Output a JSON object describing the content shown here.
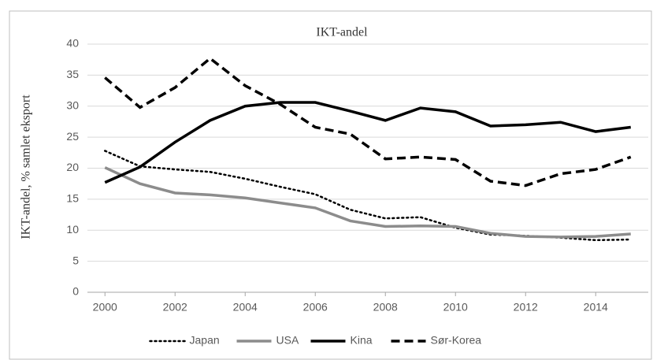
{
  "chart_data": {
    "type": "line",
    "title": "IKT-andel",
    "y_label": "IKT-andel,  % samlet eksport",
    "xlim": [
      1999.5,
      2015.5
    ],
    "xticks": [
      2000,
      2002,
      2004,
      2006,
      2008,
      2010,
      2012,
      2014
    ],
    "ylim": [
      0,
      40
    ],
    "yticks": [
      0,
      5,
      10,
      15,
      20,
      25,
      30,
      35,
      40
    ],
    "grid": true,
    "legend": "bottom",
    "x": [
      2000,
      2001,
      2002,
      2003,
      2004,
      2005,
      2006,
      2007,
      2008,
      2009,
      2010,
      2011,
      2012,
      2013,
      2014,
      2015
    ],
    "series": [
      {
        "name": "Japan",
        "color": "#000000",
        "dash": "dotted",
        "values": [
          22.8,
          20.3,
          19.8,
          19.4,
          18.3,
          17.0,
          15.8,
          13.3,
          11.9,
          12.1,
          10.4,
          9.3,
          9.1,
          8.8,
          8.4,
          8.5
        ]
      },
      {
        "name": "USA",
        "color": "#8c8c8c",
        "dash": "solid",
        "values": [
          20.1,
          17.5,
          16.0,
          15.7,
          15.2,
          14.4,
          13.6,
          11.5,
          10.6,
          10.7,
          10.6,
          9.5,
          9.0,
          8.9,
          9.0,
          9.4
        ]
      },
      {
        "name": "Kina",
        "color": "#000000",
        "dash": "solid",
        "values": [
          17.7,
          20.2,
          24.2,
          27.7,
          30.0,
          30.6,
          30.6,
          29.2,
          27.7,
          29.7,
          29.1,
          26.8,
          27.0,
          27.4,
          25.9,
          26.6
        ]
      },
      {
        "name": "Sør-Korea",
        "color": "#000000",
        "dash": "dashed",
        "values": [
          34.6,
          29.8,
          33.0,
          37.7,
          33.3,
          30.3,
          26.6,
          25.5,
          21.5,
          21.8,
          21.4,
          17.9,
          17.2,
          19.1,
          19.8,
          21.8
        ]
      }
    ]
  }
}
